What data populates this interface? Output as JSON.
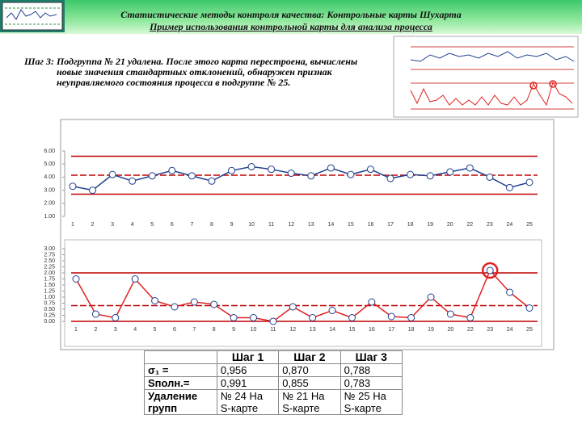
{
  "header": {
    "title": "Статистические методы контроля качества: Контрольные карты Шухарта",
    "subtitle": "Пример использования контрольной карты для анализа процесса"
  },
  "text": {
    "label": "Шаг 3:",
    "body": "Подгруппа № 21 удалена. После этого карта перестроена, вычислены новые значения стандартных отклонений, обнаружен признак неуправляемого состояния процесса в подгруппе № 25."
  },
  "chart_data": [
    {
      "type": "line",
      "categories": [
        1,
        2,
        3,
        4,
        5,
        6,
        7,
        8,
        9,
        10,
        11,
        12,
        13,
        14,
        15,
        16,
        17,
        18,
        19,
        20,
        22,
        23,
        24,
        25
      ],
      "values": [
        3.3,
        3.0,
        4.2,
        3.7,
        4.1,
        4.5,
        4.1,
        3.7,
        4.5,
        4.8,
        4.6,
        4.3,
        4.1,
        4.7,
        4.2,
        4.6,
        3.9,
        4.2,
        4.1,
        4.4,
        4.7,
        4.0,
        3.2,
        3.6
      ],
      "color": "#1f3f8f",
      "limits": {
        "ucl": 5.6,
        "cl": 4.15,
        "lcl": 2.7
      },
      "limit_color": "#c00000",
      "ylim": [
        1,
        6
      ],
      "yticks": [
        {
          "value": 1,
          "label": "1.00"
        },
        {
          "value": 2,
          "label": "2.00"
        },
        {
          "value": 3,
          "label": "3.00"
        },
        {
          "value": 4,
          "label": "4.00"
        },
        {
          "value": 5,
          "label": "5.00"
        },
        {
          "value": 6,
          "label": "6.00"
        }
      ]
    },
    {
      "type": "line",
      "categories": [
        1,
        2,
        3,
        4,
        5,
        6,
        7,
        8,
        9,
        10,
        11,
        12,
        13,
        14,
        15,
        16,
        17,
        18,
        19,
        20,
        22,
        23,
        24,
        25
      ],
      "values": [
        1.75,
        0.3,
        0.15,
        1.75,
        0.85,
        0.6,
        0.8,
        0.7,
        0.15,
        0.15,
        0,
        0.6,
        0.15,
        0.45,
        0.15,
        0.8,
        0.2,
        0.15,
        1.0,
        0.3,
        0.15,
        2.1,
        1.2,
        0.55
      ],
      "color": "#e02020",
      "limits": {
        "ucl": 2.0,
        "cl": 0.65,
        "lcl": 0
      },
      "limit_color": "#c00000",
      "highlight": 23,
      "ylim": [
        0,
        3
      ],
      "yticks": [
        {
          "value": 0,
          "label": "0.00"
        },
        {
          "value": 0.25,
          "label": "0.25"
        },
        {
          "value": 0.5,
          "label": "0.50"
        },
        {
          "value": 0.75,
          "label": "0.75"
        },
        {
          "value": 1,
          "label": "1.00"
        },
        {
          "value": 1.25,
          "label": "1.25"
        },
        {
          "value": 1.5,
          "label": "1.50"
        },
        {
          "value": 1.75,
          "label": "1.75"
        },
        {
          "value": 2,
          "label": "2.00"
        },
        {
          "value": 2.25,
          "label": "2.25"
        },
        {
          "value": 2.5,
          "label": "2.50"
        },
        {
          "value": 2.75,
          "label": "2.75"
        },
        {
          "value": 3,
          "label": "3.00"
        }
      ]
    }
  ],
  "table": {
    "header": [
      "",
      "Шаг 1",
      "Шаг 2",
      "Шаг 3"
    ],
    "rows": [
      [
        "σ₁ =",
        "0,956",
        "0,870",
        "0,788"
      ],
      [
        "Sполн.=",
        "0,991",
        "0,855",
        "0,783"
      ],
      [
        "Удаление групп",
        "№ 24 На S-карте",
        "№ 21 На S-карте",
        "№ 25 На S-карте"
      ]
    ]
  }
}
